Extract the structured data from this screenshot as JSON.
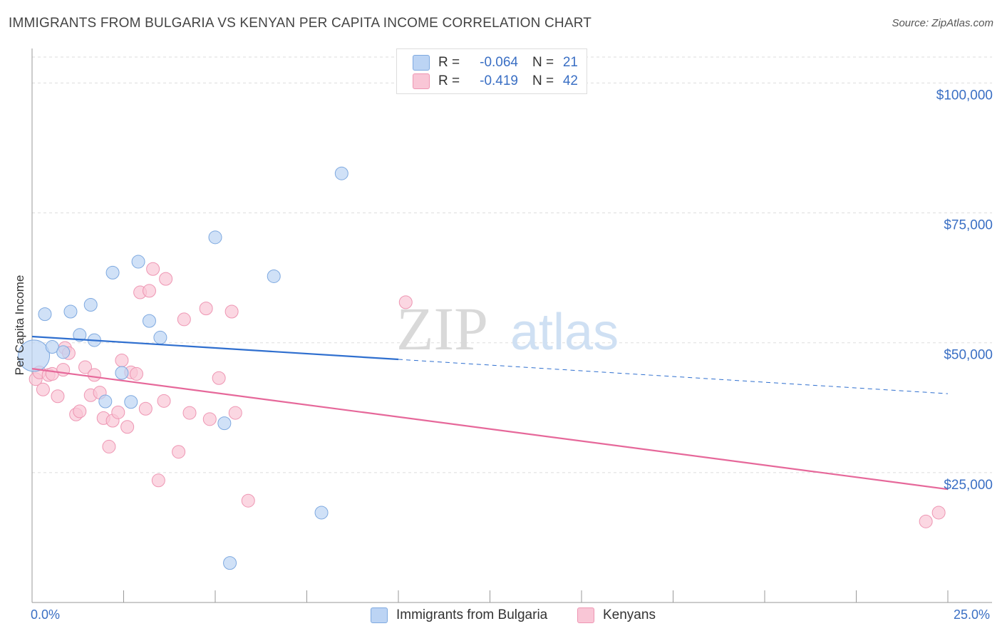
{
  "header": {
    "title": "IMMIGRANTS FROM BULGARIA VS KENYAN PER CAPITA INCOME CORRELATION CHART",
    "source": "Source: ZipAtlas.com"
  },
  "watermark": {
    "zip": "ZIP",
    "atlas": "atlas"
  },
  "legend_stats": [
    {
      "r_label": "R =",
      "r_value": "-0.064",
      "n_label": "N =",
      "n_value": "21"
    },
    {
      "r_label": "R =",
      "r_value": "-0.419",
      "n_label": "N =",
      "n_value": "42"
    }
  ],
  "colors": {
    "blue_fill": "#bcd4f4",
    "blue_stroke": "#7ea9e0",
    "blue_line": "#2f6fcf",
    "pink_fill": "#f9c6d6",
    "pink_stroke": "#ee96b3",
    "pink_line": "#e6689a",
    "axis_text": "#3a6fc4",
    "grid": "#dddddd"
  },
  "chart_data": {
    "type": "scatter",
    "title": "IMMIGRANTS FROM BULGARIA VS KENYAN PER CAPITA INCOME CORRELATION CHART",
    "xlabel": "",
    "ylabel": "Per Capita Income",
    "xlim": [
      0,
      25
    ],
    "ylim": [
      0,
      105000
    ],
    "x_tick_labels": [
      "0.0%",
      "25.0%"
    ],
    "y_ticks": [
      25000,
      50000,
      75000,
      100000
    ],
    "y_tick_labels": [
      "$25,000",
      "$50,000",
      "$75,000",
      "$100,000"
    ],
    "grid": true,
    "legend_position": "bottom",
    "series": [
      {
        "name": "Immigrants from Bulgaria",
        "color": "#7ea9e0",
        "r": -0.064,
        "n": 21,
        "trend": {
          "x0": 0,
          "y0": 51200,
          "x1": 25,
          "y1": 40200,
          "solid_until": 10
        },
        "points": [
          [
            0.05,
            47500
          ],
          [
            0.35,
            55500
          ],
          [
            0.55,
            49200
          ],
          [
            0.85,
            48200
          ],
          [
            1.05,
            56000
          ],
          [
            1.3,
            51500
          ],
          [
            1.6,
            57300
          ],
          [
            1.7,
            50500
          ],
          [
            2.0,
            38700
          ],
          [
            2.2,
            63500
          ],
          [
            2.45,
            44200
          ],
          [
            2.7,
            38600
          ],
          [
            2.9,
            65600
          ],
          [
            3.2,
            54200
          ],
          [
            3.5,
            51000
          ],
          [
            5.0,
            70300
          ],
          [
            5.25,
            34500
          ],
          [
            5.4,
            7600
          ],
          [
            6.6,
            62800
          ],
          [
            7.9,
            17300
          ],
          [
            8.45,
            82600
          ]
        ]
      },
      {
        "name": "Kenyans",
        "color": "#ee96b3",
        "r": -0.419,
        "n": 42,
        "trend": {
          "x0": 0,
          "y0": 45000,
          "x1": 25,
          "y1": 21800
        },
        "points": [
          [
            0.1,
            43000
          ],
          [
            0.2,
            44300
          ],
          [
            0.3,
            41000
          ],
          [
            0.45,
            43800
          ],
          [
            0.55,
            44000
          ],
          [
            0.7,
            39700
          ],
          [
            0.85,
            44800
          ],
          [
            0.9,
            49000
          ],
          [
            1.0,
            48000
          ],
          [
            1.2,
            36200
          ],
          [
            1.3,
            36800
          ],
          [
            1.45,
            45300
          ],
          [
            1.6,
            39900
          ],
          [
            1.7,
            43800
          ],
          [
            1.85,
            40400
          ],
          [
            1.95,
            35500
          ],
          [
            2.1,
            30000
          ],
          [
            2.2,
            35000
          ],
          [
            2.35,
            36600
          ],
          [
            2.45,
            46600
          ],
          [
            2.6,
            33800
          ],
          [
            2.7,
            44300
          ],
          [
            2.85,
            44000
          ],
          [
            2.95,
            59700
          ],
          [
            3.1,
            37300
          ],
          [
            3.2,
            60000
          ],
          [
            3.3,
            64200
          ],
          [
            3.45,
            23500
          ],
          [
            3.6,
            38800
          ],
          [
            3.65,
            62300
          ],
          [
            4.0,
            29000
          ],
          [
            4.15,
            54500
          ],
          [
            4.3,
            36500
          ],
          [
            4.75,
            56600
          ],
          [
            4.85,
            35300
          ],
          [
            5.1,
            43200
          ],
          [
            5.45,
            56000
          ],
          [
            5.55,
            36500
          ],
          [
            5.9,
            19600
          ],
          [
            10.2,
            57800
          ],
          [
            24.4,
            15600
          ],
          [
            24.75,
            17300
          ]
        ]
      }
    ]
  }
}
